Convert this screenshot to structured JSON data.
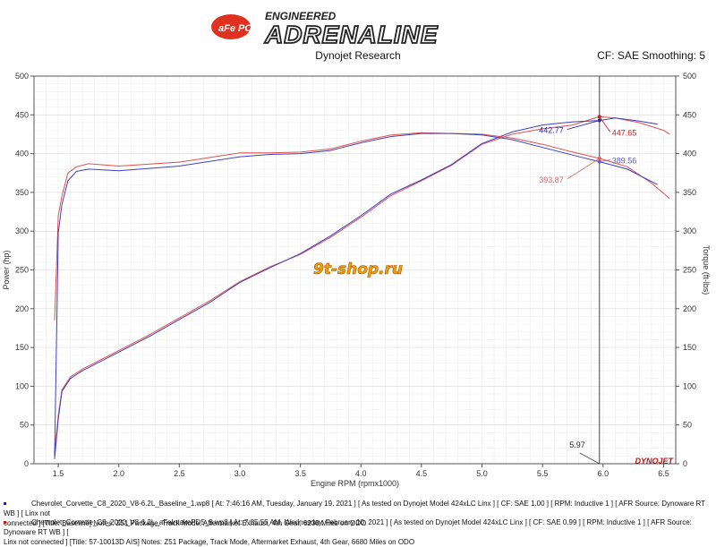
{
  "header": {
    "brand_badge": "aFe POWER",
    "brand_top": "ENGINEERED",
    "brand_main": "ADRENALINE",
    "center_title": "Dynojet Research",
    "right_info": "CF: SAE Smoothing: 5"
  },
  "watermark": "9t-shop.ru",
  "footer_logo": "DYNOJET",
  "colors": {
    "baseline": "#e05050",
    "intake": "#4040c0",
    "background": "#ffffff",
    "grid": "#e0e0e0"
  },
  "cursor": {
    "rpm_label": "5.97",
    "rpm": 5.97
  },
  "annotations": [
    {
      "text": "442.77",
      "color": "#2a2aa0"
    },
    {
      "text": "447.65",
      "color": "#d02020"
    },
    {
      "text": "389.56",
      "color": "#6060c8"
    },
    {
      "text": "393.87",
      "color": "#e06060"
    }
  ],
  "legend": [
    {
      "line1": "Chevrolet_Corvette_C8_2020_V8-6.2L_Baseline_1.wp8 [ At: 7:46:16 AM, Tuesday, January 19, 2021 ] [ As tested on Dynojet Model 424xLC Linx ] [ CF: SAE 1.00 ] [ RPM: Inductive 1 ] [ AFR Source: Dynoware RT WB ] [ Linx not",
      "line2": "connected ] [Title: Baseline]  Notes: Z51 Package, Track Mode, Aftermarket Exhaust, 4th Gear, 6230 Miles on ODO"
    },
    {
      "line1": "Chevrolet_Corvette_C8_2020_V8-6.2L_aFeIntakePD5_9.wp8 [ At: 7:35:55 AM, Wednesday, February 10, 2021 ] [ As tested on Dynojet Model 424xLC Linx ] [ CF: SAE 0.99 ] [ RPM: Inductive 1 ] [ AFR Source: Dynoware RT WB ] [",
      "line2": "Linx not connected ] [Title: 57-10013D AIS]  Notes: Z51 Package, Track Mode, Aftermarket Exhaust, 4th Gear, 6680 Miles on ODO"
    }
  ],
  "chart_data": {
    "type": "line",
    "title": "",
    "xlabel": "Engine RPM (rpmx1000)",
    "ylabel": "Power (hp)",
    "y2label": "Torque (ft-lbs)",
    "xlim": [
      1.3,
      6.6
    ],
    "ylim": [
      0,
      500
    ],
    "y2lim": [
      0,
      500
    ],
    "x_ticks": [
      "1.5",
      "2.0",
      "2.5",
      "3.0",
      "3.5",
      "4.0",
      "4.5",
      "5.0",
      "5.5",
      "6.0",
      "6.5"
    ],
    "y_ticks": [
      "0",
      "50",
      "100",
      "150",
      "200",
      "250",
      "300",
      "350",
      "400",
      "450",
      "500"
    ],
    "grid": true,
    "series": [
      {
        "file": "Baseline",
        "kind": "power",
        "points": [
          [
            1.47,
            15
          ],
          [
            1.5,
            62
          ],
          [
            1.53,
            95
          ],
          [
            1.6,
            112
          ],
          [
            1.7,
            122
          ],
          [
            1.8,
            130
          ],
          [
            2.0,
            146
          ],
          [
            2.25,
            166
          ],
          [
            2.5,
            188
          ],
          [
            2.75,
            210
          ],
          [
            3.0,
            235
          ],
          [
            3.25,
            254
          ],
          [
            3.5,
            270
          ],
          [
            3.75,
            292
          ],
          [
            4.0,
            318
          ],
          [
            4.25,
            346
          ],
          [
            4.5,
            365
          ],
          [
            4.75,
            385
          ],
          [
            5.0,
            412
          ],
          [
            5.25,
            425
          ],
          [
            5.5,
            432
          ],
          [
            5.75,
            437
          ],
          [
            5.97,
            447.65
          ],
          [
            6.1,
            446
          ],
          [
            6.3,
            440
          ],
          [
            6.5,
            430
          ],
          [
            6.55,
            425
          ]
        ]
      },
      {
        "file": "aFe Intake",
        "kind": "power",
        "points": [
          [
            1.47,
            6
          ],
          [
            1.5,
            58
          ],
          [
            1.53,
            93
          ],
          [
            1.6,
            110
          ],
          [
            1.7,
            120
          ],
          [
            1.8,
            128
          ],
          [
            2.0,
            144
          ],
          [
            2.25,
            164
          ],
          [
            2.5,
            186
          ],
          [
            2.75,
            208
          ],
          [
            3.0,
            234
          ],
          [
            3.25,
            253
          ],
          [
            3.5,
            271
          ],
          [
            3.75,
            294
          ],
          [
            4.0,
            320
          ],
          [
            4.25,
            348
          ],
          [
            4.5,
            366
          ],
          [
            4.75,
            386
          ],
          [
            5.0,
            413
          ],
          [
            5.25,
            428
          ],
          [
            5.5,
            437
          ],
          [
            5.75,
            441
          ],
          [
            5.97,
            442.77
          ],
          [
            6.1,
            446
          ],
          [
            6.3,
            442
          ],
          [
            6.45,
            438
          ]
        ]
      },
      {
        "file": "Baseline",
        "kind": "torque",
        "points": [
          [
            1.47,
            185
          ],
          [
            1.5,
            320
          ],
          [
            1.53,
            345
          ],
          [
            1.58,
            375
          ],
          [
            1.65,
            383
          ],
          [
            1.75,
            387
          ],
          [
            2.0,
            384
          ],
          [
            2.5,
            389
          ],
          [
            3.0,
            401
          ],
          [
            3.25,
            401
          ],
          [
            3.5,
            402
          ],
          [
            3.75,
            406
          ],
          [
            4.0,
            416
          ],
          [
            4.25,
            424
          ],
          [
            4.5,
            427
          ],
          [
            4.75,
            426
          ],
          [
            5.0,
            425
          ],
          [
            5.25,
            420
          ],
          [
            5.5,
            412
          ],
          [
            5.75,
            402
          ],
          [
            5.97,
            393.87
          ],
          [
            6.2,
            383
          ],
          [
            6.4,
            362
          ],
          [
            6.55,
            342
          ]
        ]
      },
      {
        "file": "aFe Intake",
        "kind": "torque",
        "points": [
          [
            1.47,
            10
          ],
          [
            1.5,
            298
          ],
          [
            1.53,
            334
          ],
          [
            1.58,
            365
          ],
          [
            1.65,
            377
          ],
          [
            1.75,
            380
          ],
          [
            2.0,
            378
          ],
          [
            2.5,
            384
          ],
          [
            3.0,
            396
          ],
          [
            3.25,
            399
          ],
          [
            3.5,
            400
          ],
          [
            3.75,
            404
          ],
          [
            4.0,
            414
          ],
          [
            4.25,
            422
          ],
          [
            4.5,
            426
          ],
          [
            4.75,
            426
          ],
          [
            5.0,
            424
          ],
          [
            5.25,
            418
          ],
          [
            5.5,
            408
          ],
          [
            5.75,
            398
          ],
          [
            5.97,
            389.56
          ],
          [
            6.2,
            380
          ],
          [
            6.4,
            364
          ],
          [
            6.45,
            360
          ]
        ]
      }
    ]
  }
}
